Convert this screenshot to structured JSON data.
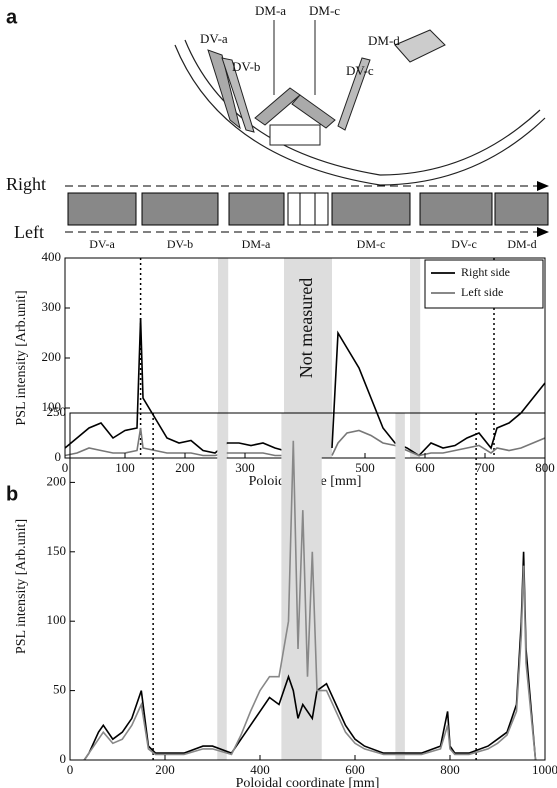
{
  "diagram": {
    "panel_label": "a",
    "labels": [
      "DV-a",
      "DV-b",
      "DM-a",
      "DM-c",
      "DM-d",
      "DV-c"
    ],
    "arrows": [
      "Right",
      "Left"
    ],
    "tiles": [
      "DV-a",
      "DV-b",
      "DM-a",
      "DM-c",
      "DV-c",
      "DM-d"
    ]
  },
  "chart_data": [
    {
      "type": "line",
      "ylabel": "PSL intensity [Arb.unit]",
      "xlabel": "Poloidal scale [mm]",
      "annotation": "Not measured",
      "xlim": [
        0,
        800
      ],
      "ylim": [
        0,
        400
      ],
      "xticks": [
        0,
        100,
        200,
        300,
        400,
        500,
        600,
        700,
        800
      ],
      "yticks": [
        0,
        100,
        200,
        300,
        400
      ],
      "shaded_regions": [
        [
          255,
          272
        ],
        [
          365,
          445
        ],
        [
          575,
          592
        ]
      ],
      "dotted_lines": [
        126,
        715
      ],
      "legend": "upper right",
      "x": [
        0,
        20,
        40,
        60,
        80,
        100,
        120,
        126,
        130,
        150,
        170,
        190,
        210,
        230,
        250,
        270,
        290,
        310,
        330,
        350,
        365,
        400,
        445,
        455,
        470,
        490,
        510,
        530,
        550,
        570,
        590,
        610,
        630,
        650,
        670,
        690,
        710,
        720,
        740,
        760,
        780,
        800
      ],
      "series": [
        {
          "name": "Right side",
          "color": "#000000",
          "values": [
            20,
            40,
            60,
            70,
            40,
            55,
            60,
            280,
            120,
            80,
            40,
            30,
            35,
            15,
            10,
            30,
            30,
            25,
            30,
            20,
            15,
            null,
            20,
            250,
            220,
            180,
            120,
            60,
            30,
            20,
            5,
            30,
            20,
            25,
            40,
            50,
            20,
            60,
            70,
            90,
            120,
            150
          ]
        },
        {
          "name": "Left side",
          "color": "#777777",
          "values": [
            5,
            10,
            20,
            15,
            10,
            10,
            15,
            60,
            20,
            15,
            10,
            10,
            10,
            5,
            5,
            10,
            10,
            10,
            10,
            5,
            5,
            null,
            5,
            30,
            50,
            55,
            45,
            30,
            25,
            15,
            5,
            10,
            10,
            15,
            20,
            25,
            10,
            20,
            15,
            20,
            30,
            40
          ]
        }
      ]
    },
    {
      "type": "line",
      "panel_label": "b",
      "ylabel": "PSL intensity [Arb.unit]",
      "xlabel": "Poloidal coordinate [mm]",
      "xlim": [
        0,
        1000
      ],
      "ylim": [
        0,
        250
      ],
      "xticks": [
        0,
        200,
        400,
        600,
        800,
        1000
      ],
      "yticks": [
        0,
        50,
        100,
        150,
        200,
        250
      ],
      "shaded_regions": [
        [
          310,
          330
        ],
        [
          445,
          530
        ],
        [
          685,
          705
        ]
      ],
      "dotted_lines": [
        175,
        855
      ],
      "x": [
        30,
        40,
        60,
        70,
        90,
        110,
        130,
        150,
        165,
        180,
        200,
        240,
        280,
        300,
        340,
        360,
        380,
        400,
        420,
        440,
        460,
        470,
        480,
        490,
        500,
        510,
        520,
        540,
        560,
        580,
        600,
        620,
        660,
        700,
        740,
        780,
        795,
        800,
        810,
        840,
        880,
        900,
        920,
        940,
        950,
        955,
        960,
        980
      ],
      "series": [
        {
          "color": "#000000",
          "values": [
            0,
            5,
            20,
            25,
            15,
            20,
            30,
            50,
            10,
            5,
            5,
            5,
            10,
            10,
            5,
            15,
            25,
            35,
            45,
            40,
            60,
            50,
            30,
            40,
            35,
            30,
            50,
            55,
            40,
            25,
            15,
            10,
            5,
            5,
            5,
            10,
            35,
            10,
            5,
            5,
            10,
            15,
            20,
            40,
            100,
            150,
            80,
            0
          ]
        },
        {
          "color": "#888888",
          "values": [
            0,
            5,
            15,
            20,
            12,
            15,
            25,
            40,
            8,
            4,
            4,
            4,
            8,
            8,
            4,
            18,
            35,
            50,
            60,
            60,
            100,
            230,
            80,
            180,
            60,
            150,
            50,
            50,
            35,
            20,
            12,
            8,
            4,
            4,
            4,
            8,
            25,
            8,
            4,
            4,
            8,
            12,
            18,
            35,
            90,
            140,
            70,
            0
          ]
        }
      ]
    }
  ]
}
